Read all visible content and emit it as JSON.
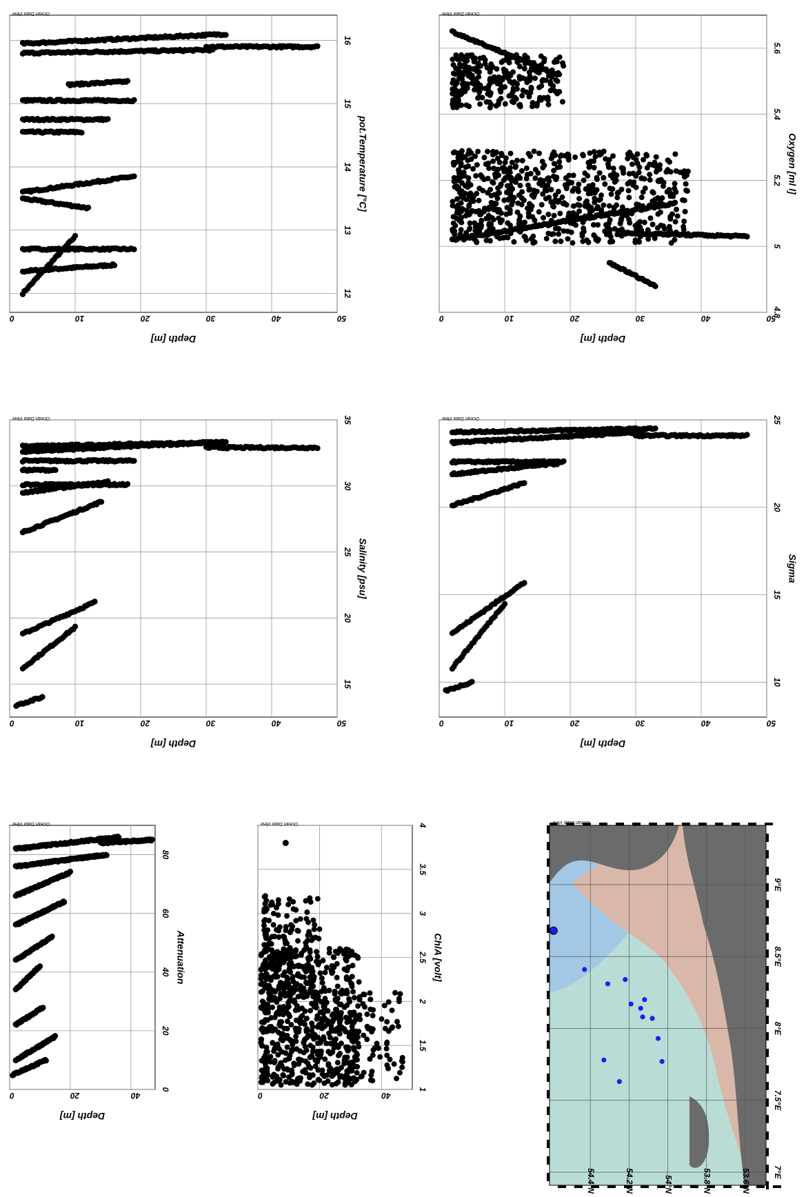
{
  "watermark": "Ocean Data View",
  "colors": {
    "points": "#000000",
    "grid": "#999999",
    "land": "#6b6b6b",
    "shelf": "#d9b8aa",
    "shallow": "#b9ddd6",
    "deep": "#a3c8e6",
    "stations": "#1f1fe6"
  },
  "chart_data": [
    {
      "id": "temp",
      "type": "scatter",
      "xlabel": "pot.Temperature [°C]",
      "ylabel": "Depth [m]",
      "xticks": [
        12,
        13,
        14,
        15,
        16
      ],
      "yticks": [
        0,
        10,
        20,
        30,
        40,
        50
      ],
      "xlim": [
        11.7,
        16.4
      ],
      "ylim": [
        0,
        50
      ],
      "series": [
        {
          "name": "",
          "profiles": [
            {
              "z0": 2,
              "z1": 10,
              "x0": 12.0,
              "x1": 12.9
            },
            {
              "z0": 2,
              "z1": 16,
              "x0": 12.35,
              "x1": 12.45
            },
            {
              "z0": 2,
              "z1": 19,
              "x0": 12.7,
              "x1": 12.7
            },
            {
              "z0": 2,
              "z1": 12,
              "x0": 13.5,
              "x1": 13.35
            },
            {
              "z0": 2,
              "z1": 19,
              "x0": 13.6,
              "x1": 13.85
            },
            {
              "z0": 2,
              "z1": 11,
              "x0": 14.55,
              "x1": 14.55
            },
            {
              "z0": 2,
              "z1": 15,
              "x0": 14.75,
              "x1": 14.75
            },
            {
              "z0": 2,
              "z1": 19,
              "x0": 15.05,
              "x1": 15.05
            },
            {
              "z0": 9,
              "z1": 18,
              "x0": 15.3,
              "x1": 15.35
            },
            {
              "z0": 2,
              "z1": 31,
              "x0": 15.8,
              "x1": 15.85
            },
            {
              "z0": 2,
              "z1": 33,
              "x0": 15.95,
              "x1": 16.1
            },
            {
              "z0": 30,
              "z1": 47,
              "x0": 15.9,
              "x1": 15.9
            }
          ]
        }
      ]
    },
    {
      "id": "sal",
      "type": "scatter",
      "xlabel": "Salinity [psu]",
      "ylabel": "Depth [m]",
      "xticks": [
        15,
        20,
        25,
        30,
        35
      ],
      "yticks": [
        0,
        10,
        20,
        30,
        40,
        50
      ],
      "xlim": [
        12.5,
        35
      ],
      "ylim": [
        0,
        50
      ],
      "series": [
        {
          "name": "",
          "profiles": [
            {
              "z0": 1,
              "z1": 5,
              "x0": 13.4,
              "x1": 14.0
            },
            {
              "z0": 2,
              "z1": 10,
              "x0": 16.2,
              "x1": 19.3
            },
            {
              "z0": 2,
              "z1": 13,
              "x0": 18.8,
              "x1": 21.2
            },
            {
              "z0": 2,
              "z1": 14,
              "x0": 26.5,
              "x1": 28.8
            },
            {
              "z0": 2,
              "z1": 15,
              "x0": 29.5,
              "x1": 30.3
            },
            {
              "z0": 2,
              "z1": 18,
              "x0": 30.1,
              "x1": 30.1
            },
            {
              "z0": 2,
              "z1": 7,
              "x0": 31.2,
              "x1": 31.2
            },
            {
              "z0": 2,
              "z1": 19,
              "x0": 31.9,
              "x1": 31.9
            },
            {
              "z0": 2,
              "z1": 31,
              "x0": 32.6,
              "x1": 33.3
            },
            {
              "z0": 2,
              "z1": 33,
              "x0": 33.0,
              "x1": 33.3
            },
            {
              "z0": 30,
              "z1": 47,
              "x0": 32.9,
              "x1": 32.9
            }
          ]
        }
      ]
    },
    {
      "id": "att",
      "type": "scatter",
      "xlabel": "Attenuation",
      "ylabel": "Depth [m]",
      "xticks": [
        0,
        20,
        40,
        60,
        80
      ],
      "yticks": [
        0,
        20,
        40
      ],
      "xlim": [
        0,
        90
      ],
      "ylim": [
        0,
        48
      ],
      "series": [
        {
          "name": "",
          "profiles": [
            {
              "z0": 1,
              "z1": 12,
              "x0": 5,
              "x1": 10
            },
            {
              "z0": 2,
              "z1": 15,
              "x0": 10,
              "x1": 18
            },
            {
              "z0": 2,
              "z1": 11,
              "x0": 22,
              "x1": 28
            },
            {
              "z0": 2,
              "z1": 10,
              "x0": 34,
              "x1": 42
            },
            {
              "z0": 2,
              "z1": 14,
              "x0": 44,
              "x1": 52
            },
            {
              "z0": 2,
              "z1": 18,
              "x0": 56,
              "x1": 64
            },
            {
              "z0": 2,
              "z1": 20,
              "x0": 66,
              "x1": 74
            },
            {
              "z0": 2,
              "z1": 32,
              "x0": 76,
              "x1": 80
            },
            {
              "z0": 2,
              "z1": 36,
              "x0": 82,
              "x1": 86
            },
            {
              "z0": 30,
              "z1": 47,
              "x0": 84,
              "x1": 85
            }
          ]
        }
      ]
    },
    {
      "id": "sigma",
      "type": "scatter",
      "xlabel": "Sigma",
      "ylabel": "Depth [m]",
      "xticks": [
        10,
        15,
        20,
        25
      ],
      "yticks": [
        0,
        10,
        20,
        30,
        40,
        50
      ],
      "xlim": [
        8,
        25
      ],
      "ylim": [
        0,
        50
      ],
      "series": [
        {
          "name": "",
          "profiles": [
            {
              "z0": 1,
              "z1": 5,
              "x0": 9.5,
              "x1": 10
            },
            {
              "z0": 2,
              "z1": 10,
              "x0": 10.8,
              "x1": 14.5
            },
            {
              "z0": 2,
              "z1": 13,
              "x0": 12.8,
              "x1": 15.7
            },
            {
              "z0": 2,
              "z1": 13,
              "x0": 20.1,
              "x1": 21.4
            },
            {
              "z0": 2,
              "z1": 18,
              "x0": 21.9,
              "x1": 22.5
            },
            {
              "z0": 2,
              "z1": 19,
              "x0": 22.6,
              "x1": 22.6
            },
            {
              "z0": 2,
              "z1": 31,
              "x0": 23.7,
              "x1": 24.3
            },
            {
              "z0": 2,
              "z1": 33,
              "x0": 24.3,
              "x1": 24.5
            },
            {
              "z0": 30,
              "z1": 47,
              "x0": 24.1,
              "x1": 24.1
            }
          ]
        }
      ]
    },
    {
      "id": "chla",
      "type": "scatter",
      "xlabel": "ChlA [volt]",
      "ylabel": "Depth [m]",
      "xticks": [
        1,
        1.5,
        2,
        2.5,
        3,
        3.5,
        4
      ],
      "yticks": [
        0,
        20,
        40
      ],
      "xlim": [
        1,
        4
      ],
      "ylim": [
        0,
        50
      ],
      "series": [
        {
          "name": "",
          "clouds": [
            {
              "zmin": 1,
              "zmax": 33,
              "xmin": 1.05,
              "xmax": 2.6,
              "n": 650
            },
            {
              "zmin": 2,
              "zmax": 20,
              "xmin": 2.0,
              "xmax": 3.2,
              "n": 160
            },
            {
              "zmin": 25,
              "zmax": 47,
              "xmin": 1.1,
              "xmax": 2.1,
              "n": 110
            }
          ],
          "points": [
            {
              "z": 9,
              "x": 3.8
            }
          ]
        }
      ]
    },
    {
      "id": "oxy",
      "type": "scatter",
      "xlabel": "Oxygen [ml l]",
      "ylabel": "Depth [m]",
      "xticks": [
        4.8,
        5,
        5.2,
        5.4,
        5.6
      ],
      "yticks": [
        0,
        10,
        20,
        30,
        40,
        50
      ],
      "xlim": [
        4.8,
        5.7
      ],
      "ylim": [
        0,
        50
      ],
      "series": [
        {
          "name": "",
          "clouds": [
            {
              "zmin": 2,
              "zmax": 38,
              "xmin": 5.01,
              "xmax": 5.29,
              "n": 700
            },
            {
              "zmin": 2,
              "zmax": 19,
              "xmin": 5.42,
              "xmax": 5.58,
              "n": 280
            }
          ],
          "profiles": [
            {
              "z0": 2,
              "z1": 36,
              "x0": 5.02,
              "x1": 5.13
            },
            {
              "z0": 28,
              "z1": 47,
              "x0": 5.04,
              "x1": 5.03
            },
            {
              "z0": 26,
              "z1": 33,
              "x0": 4.95,
              "x1": 4.88
            },
            {
              "z0": 2,
              "z1": 18,
              "x0": 5.65,
              "x1": 5.52
            }
          ]
        }
      ]
    },
    {
      "id": "map",
      "type": "map",
      "xticks": [
        "7°E",
        "7.5°E",
        "8°E",
        "8.5°E",
        "9°E"
      ],
      "yticks": [
        "54.4°N",
        "54.2°N",
        "54°N",
        "53.8°N",
        "53.6°N"
      ],
      "stations": [
        {
          "lon": 7.78,
          "lat": 54.33
        },
        {
          "lon": 7.63,
          "lat": 54.25
        },
        {
          "lon": 7.77,
          "lat": 54.03
        },
        {
          "lon": 7.93,
          "lat": 54.05
        },
        {
          "lon": 8.07,
          "lat": 54.08
        },
        {
          "lon": 8.14,
          "lat": 54.14
        },
        {
          "lon": 8.2,
          "lat": 54.12
        },
        {
          "lon": 8.08,
          "lat": 54.13
        },
        {
          "lon": 8.34,
          "lat": 54.22
        },
        {
          "lon": 8.17,
          "lat": 54.19
        },
        {
          "lon": 8.31,
          "lat": 54.31
        },
        {
          "lon": 8.41,
          "lat": 54.43
        },
        {
          "lon": 8.68,
          "lat": 54.59
        }
      ]
    }
  ]
}
